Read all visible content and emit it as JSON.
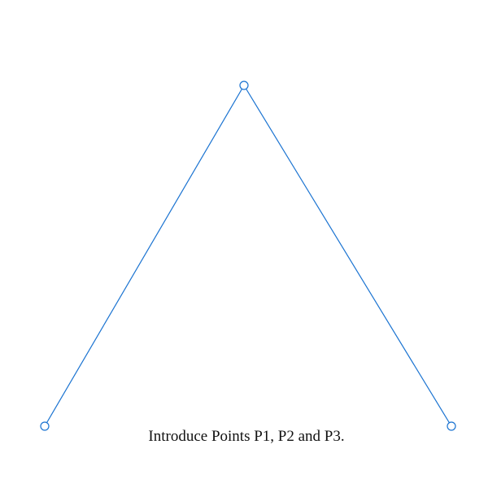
{
  "caption": "Introduce Points P1, P2 and P3.",
  "colors": {
    "stroke": "#1a73d1",
    "point_fill": "#ffffff",
    "background": "#ffffff",
    "text": "#111111"
  },
  "points": [
    {
      "id": "P1"
    },
    {
      "id": "P2"
    },
    {
      "id": "P3"
    }
  ],
  "segments": [
    {
      "from": "P1",
      "to": "P2"
    },
    {
      "from": "P2",
      "to": "P3"
    }
  ]
}
